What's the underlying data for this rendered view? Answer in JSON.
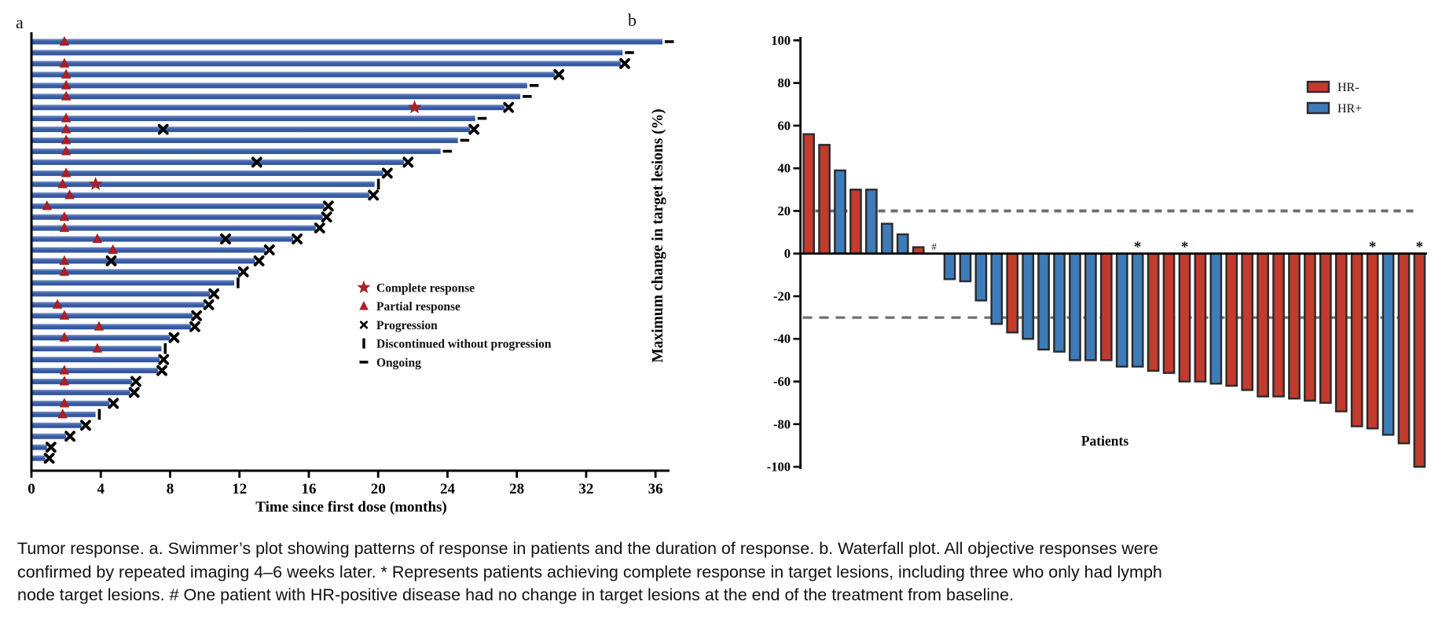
{
  "panel_a_letter": "a",
  "panel_b_letter": "b",
  "caption": "Tumor response. a. Swimmer’s plot showing patterns of response in patients and the duration of response. b. Waterfall plot. All objective responses were confirmed by repeated imaging 4–6 weeks later. * Represents patients achieving complete response in target lesions, including three who only had lymph node target lesions. # One patient with HR-positive disease had no change in target lesions at the end of the treatment from baseline.",
  "colors": {
    "swimmer_bar": "#3a5ea8",
    "swimmer_bar_light": "#7a93c7",
    "marker_red": "#b01f23",
    "waterfall_red": "#c23b2d",
    "waterfall_blue": "#3d7cb8",
    "bar_outline": "#2b2b2b",
    "dashed_gray": "#6f6f6f",
    "axis_black": "#000000"
  },
  "chart_data": [
    {
      "type": "bar",
      "subtype": "swimmer",
      "title": "",
      "xlabel": "Time since first dose (months)",
      "ylabel": "",
      "xlim": [
        0,
        36.8
      ],
      "xticks": [
        0,
        4,
        8,
        12,
        16,
        20,
        24,
        28,
        32,
        36
      ],
      "grid": false,
      "legend_position": "center-right",
      "legend": [
        {
          "marker": "star",
          "label": "Complete response"
        },
        {
          "marker": "triangle",
          "label": "Partial response"
        },
        {
          "marker": "x",
          "label": "Progression"
        },
        {
          "marker": "bar-vertical",
          "label": "Discontinued without progression"
        },
        {
          "marker": "dash",
          "label": "Ongoing"
        }
      ],
      "bars": [
        {
          "months": 36.4,
          "pr": 1.9,
          "end": "ongoing"
        },
        {
          "months": 34.1,
          "end": "ongoing"
        },
        {
          "months": 34.0,
          "pr": 1.9,
          "end": "progression"
        },
        {
          "months": 30.2,
          "pr": 2.0,
          "end": "progression"
        },
        {
          "months": 28.6,
          "pr": 2.0,
          "end": "ongoing"
        },
        {
          "months": 28.2,
          "pr": 2.0,
          "end": "ongoing"
        },
        {
          "months": 27.3,
          "cr": 22.1,
          "end": "progression"
        },
        {
          "months": 25.6,
          "pr": 2.0,
          "end": "ongoing"
        },
        {
          "months": 25.3,
          "pr": 2.0,
          "mid_x": [
            7.6
          ],
          "end": "progression"
        },
        {
          "months": 24.6,
          "pr": 2.0,
          "end": "ongoing"
        },
        {
          "months": 23.6,
          "pr": 2.0,
          "end": "ongoing"
        },
        {
          "months": 21.5,
          "mid_x": [
            13.0
          ],
          "end": "progression"
        },
        {
          "months": 20.3,
          "pr": 2.0,
          "end": "progression"
        },
        {
          "months": 19.8,
          "pr": 1.8,
          "cr": 3.7,
          "end": "discontinued"
        },
        {
          "months": 19.5,
          "pr": 2.2,
          "end": "progression"
        },
        {
          "months": 16.9,
          "pr": 0.9,
          "end": "progression"
        },
        {
          "months": 16.8,
          "pr": 1.9,
          "end": "progression"
        },
        {
          "months": 16.4,
          "pr": 1.9,
          "end": "progression"
        },
        {
          "months": 15.1,
          "pr": 3.8,
          "mid_x": [
            11.2
          ],
          "end": "progression"
        },
        {
          "months": 13.5,
          "pr": 4.7,
          "end": "progression"
        },
        {
          "months": 12.9,
          "pr": 1.9,
          "mid_x": [
            4.6
          ],
          "end": "progression"
        },
        {
          "months": 12.0,
          "pr": 1.9,
          "end": "progression"
        },
        {
          "months": 11.7,
          "end": "discontinued"
        },
        {
          "months": 10.3,
          "end": "progression"
        },
        {
          "months": 10.0,
          "pr": 1.5,
          "end": "progression"
        },
        {
          "months": 9.3,
          "pr": 1.9,
          "end": "progression"
        },
        {
          "months": 9.2,
          "pr": 3.9,
          "end": "progression"
        },
        {
          "months": 8.0,
          "pr": 1.9,
          "end": "progression"
        },
        {
          "months": 7.5,
          "pr": 3.8,
          "end": "discontinued"
        },
        {
          "months": 7.4,
          "end": "progression"
        },
        {
          "months": 7.3,
          "pr": 1.9,
          "end": "progression"
        },
        {
          "months": 5.8,
          "pr": 1.9,
          "end": "progression"
        },
        {
          "months": 5.7,
          "end": "progression"
        },
        {
          "months": 4.5,
          "pr": 1.9,
          "end": "progression"
        },
        {
          "months": 3.7,
          "pr": 1.8,
          "end": "discontinued"
        },
        {
          "months": 2.9,
          "end": "progression"
        },
        {
          "months": 2.0,
          "end": "progression"
        },
        {
          "months": 0.9,
          "end": "progression"
        },
        {
          "months": 0.8,
          "end": "progression"
        }
      ]
    },
    {
      "type": "bar",
      "subtype": "waterfall",
      "title": "",
      "xlabel": "Patients",
      "ylabel": "Maximum change in target lesions (%)",
      "ylim": [
        -100,
        100
      ],
      "yticks": [
        100,
        80,
        60,
        40,
        20,
        0,
        -20,
        -40,
        -60,
        -80,
        -100
      ],
      "reference_lines": [
        20,
        -30
      ],
      "grid": false,
      "legend_position": "upper-right",
      "legend": [
        {
          "label": "HR-",
          "color_key": "waterfall_red"
        },
        {
          "label": "HR+",
          "color_key": "waterfall_blue"
        }
      ],
      "patients": [
        {
          "value": 56,
          "group": "HR-"
        },
        {
          "value": 51,
          "group": "HR-"
        },
        {
          "value": 39,
          "group": "HR+"
        },
        {
          "value": 30,
          "group": "HR-"
        },
        {
          "value": 30,
          "group": "HR+"
        },
        {
          "value": 14,
          "group": "HR+"
        },
        {
          "value": 9,
          "group": "HR+"
        },
        {
          "value": 3,
          "group": "HR-"
        },
        {
          "value": 0,
          "group": "HR+",
          "annotation": "#"
        },
        {
          "value": -12,
          "group": "HR+"
        },
        {
          "value": -13,
          "group": "HR+"
        },
        {
          "value": -22,
          "group": "HR+"
        },
        {
          "value": -33,
          "group": "HR+"
        },
        {
          "value": -37,
          "group": "HR-"
        },
        {
          "value": -40,
          "group": "HR+"
        },
        {
          "value": -45,
          "group": "HR+"
        },
        {
          "value": -46,
          "group": "HR+"
        },
        {
          "value": -50,
          "group": "HR+"
        },
        {
          "value": -50,
          "group": "HR+"
        },
        {
          "value": -50,
          "group": "HR-"
        },
        {
          "value": -53,
          "group": "HR+"
        },
        {
          "value": -53,
          "group": "HR+",
          "annotation": "*"
        },
        {
          "value": -55,
          "group": "HR-"
        },
        {
          "value": -56,
          "group": "HR-"
        },
        {
          "value": -60,
          "group": "HR-",
          "annotation": "*"
        },
        {
          "value": -60,
          "group": "HR-"
        },
        {
          "value": -61,
          "group": "HR+"
        },
        {
          "value": -62,
          "group": "HR-"
        },
        {
          "value": -64,
          "group": "HR-"
        },
        {
          "value": -67,
          "group": "HR-"
        },
        {
          "value": -67,
          "group": "HR-"
        },
        {
          "value": -68,
          "group": "HR-"
        },
        {
          "value": -69,
          "group": "HR-"
        },
        {
          "value": -70,
          "group": "HR-"
        },
        {
          "value": -74,
          "group": "HR-"
        },
        {
          "value": -81,
          "group": "HR-"
        },
        {
          "value": -82,
          "group": "HR-",
          "annotation": "*"
        },
        {
          "value": -85,
          "group": "HR+"
        },
        {
          "value": -89,
          "group": "HR-"
        },
        {
          "value": -100,
          "group": "HR-",
          "annotation": "*"
        }
      ]
    }
  ]
}
